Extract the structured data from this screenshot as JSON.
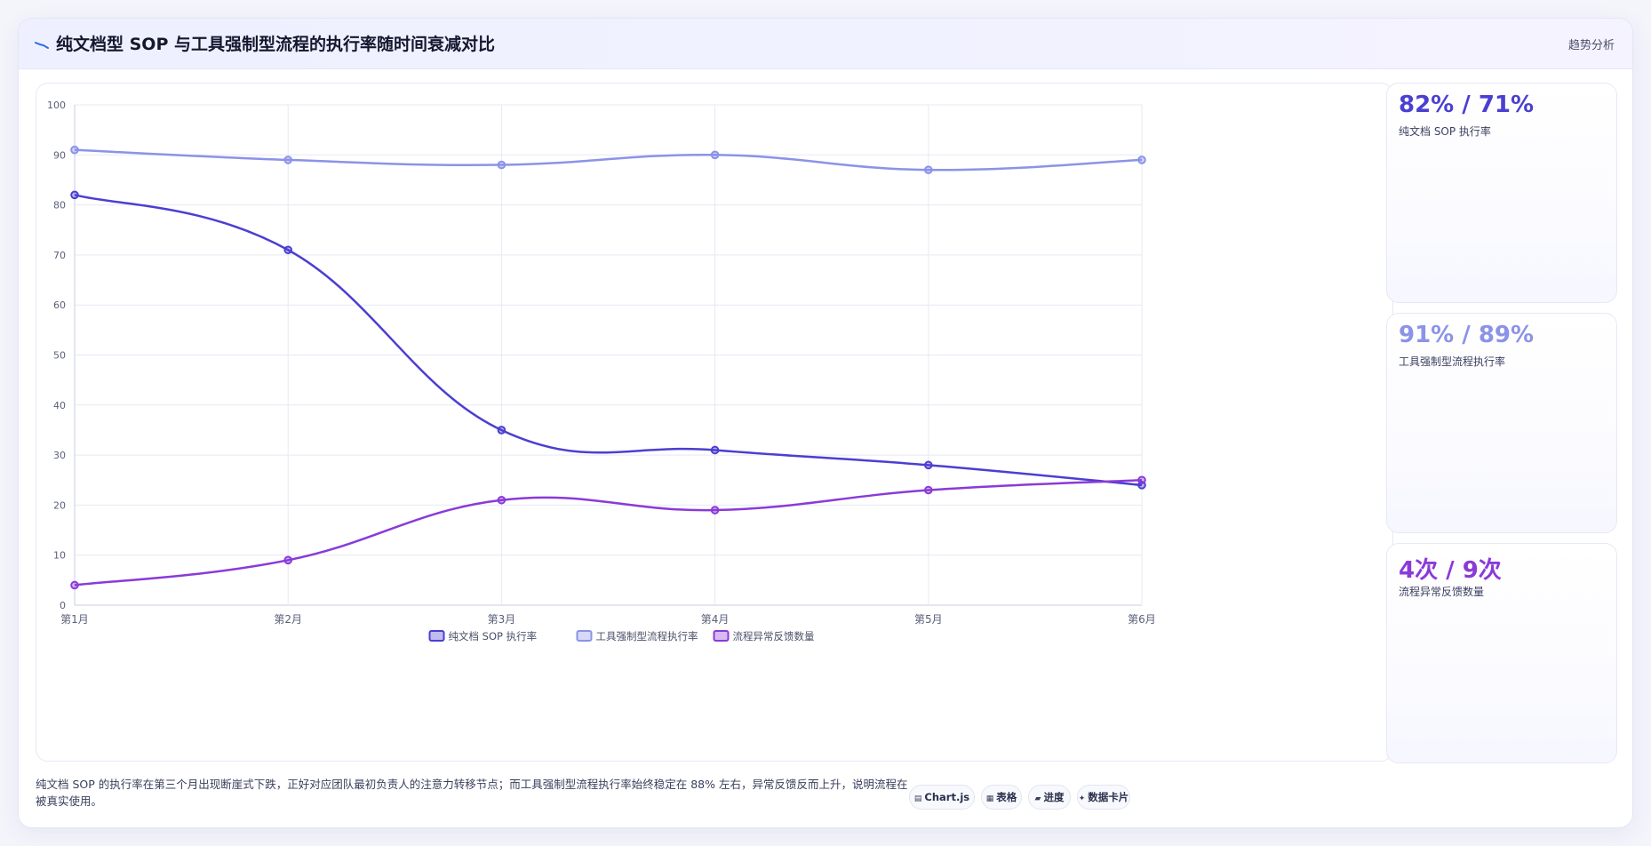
{
  "header": {
    "title": "纯文档型 SOP 与工具强制型流程的执行率随时间衰减对比",
    "tag": "趋势分析",
    "icon": "trend-line-icon"
  },
  "chart_data": {
    "type": "line",
    "categories": [
      "第1月",
      "第2月",
      "第3月",
      "第4月",
      "第5月",
      "第6月"
    ],
    "series": [
      {
        "name": "纯文档 SOP 执行率",
        "values": [
          82,
          71,
          35,
          31,
          28,
          24
        ],
        "color": "#4b3fd1"
      },
      {
        "name": "工具强制型流程执行率",
        "values": [
          91,
          89,
          88,
          90,
          87,
          89
        ],
        "color": "#8b93e8"
      },
      {
        "name": "流程异常反馈数量",
        "values": [
          4,
          9,
          21,
          19,
          23,
          25
        ],
        "color": "#8a3ad8"
      }
    ],
    "ylim": [
      0,
      100
    ],
    "yticks": [
      0,
      10,
      20,
      30,
      40,
      50,
      60,
      70,
      80,
      90,
      100
    ],
    "grid": true,
    "legend": "bottom"
  },
  "kpis": [
    {
      "value": "82% / 71%",
      "label": "纯文档 SOP 执行率",
      "color": "#4b3fd1"
    },
    {
      "value": "91% / 89%",
      "label": "工具强制型流程执行率",
      "color": "#8b93e8"
    },
    {
      "value": "4次 / 9次",
      "label": "流程异常反馈数量",
      "color": "#8a3ad8"
    }
  ],
  "footer": {
    "text": "纯文档 SOP 的执行率在第三个月出现断崖式下跌，正好对应团队最初负责人的注意力转移节点；而工具强制型流程执行率始终稳定在 88% 左右，异常反馈反而上升，说明流程在被真实使用。"
  },
  "badges": [
    {
      "icon": "chart-icon",
      "label": "Chart.js"
    },
    {
      "icon": "table-icon",
      "label": "表格"
    },
    {
      "icon": "progress-icon",
      "label": "进度"
    },
    {
      "icon": "sparkle-icon",
      "label": "数据卡片"
    }
  ]
}
